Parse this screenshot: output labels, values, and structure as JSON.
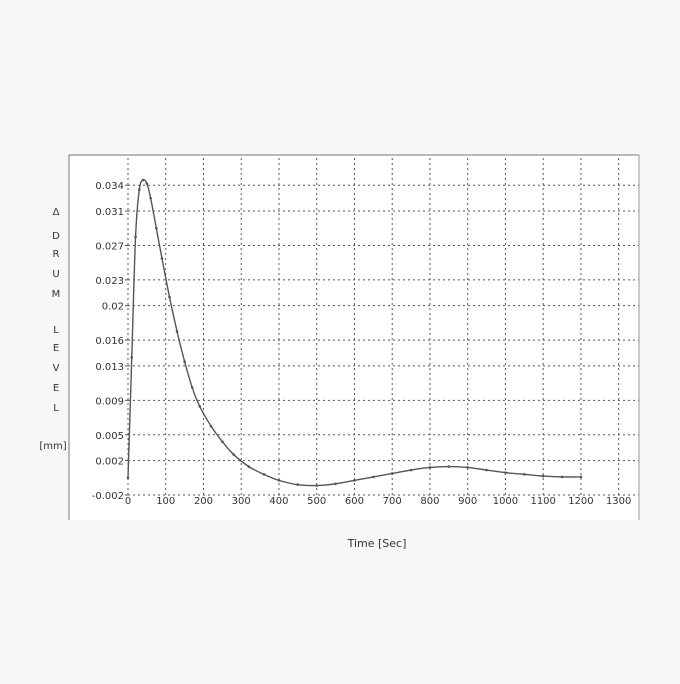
{
  "chart_data": {
    "type": "line",
    "title": "",
    "xlabel": "Time [Sec]",
    "ylabel_letters": [
      "Δ",
      "D",
      "R",
      "U",
      "M",
      "",
      "L",
      "E",
      "V",
      "E",
      "L",
      "",
      "[mm]"
    ],
    "xlim": [
      0,
      1330
    ],
    "ylim": [
      -0.002,
      0.036
    ],
    "x_ticks": [
      0,
      100,
      200,
      300,
      400,
      500,
      600,
      700,
      800,
      900,
      1000,
      1100,
      1200,
      1300
    ],
    "x_tick_labels": [
      "0",
      "100",
      "200",
      "300",
      "400",
      "500",
      "600",
      "700",
      "800",
      "900",
      "1000",
      "1100",
      "1200",
      "1300"
    ],
    "y_ticks": [
      -0.002,
      0.002,
      0.005,
      0.009,
      0.013,
      0.016,
      0.02,
      0.023,
      0.027,
      0.031,
      0.034
    ],
    "y_tick_labels": [
      "-0.002",
      "0.002",
      "0.005",
      "0.009",
      "0.013",
      "0.016",
      "0.02",
      "0.023",
      "0.027",
      "0.031",
      "0.034"
    ],
    "grid": true,
    "series": [
      {
        "color": "#555555",
        "x": [
          0,
          10,
          20,
          30,
          40,
          50,
          60,
          75,
          90,
          110,
          130,
          150,
          170,
          190,
          220,
          250,
          280,
          320,
          360,
          400,
          450,
          500,
          550,
          600,
          650,
          700,
          750,
          800,
          850,
          900,
          950,
          1000,
          1050,
          1100,
          1150,
          1200
        ],
        "y": [
          0.0,
          0.014,
          0.028,
          0.0335,
          0.0346,
          0.0342,
          0.0325,
          0.029,
          0.0255,
          0.021,
          0.017,
          0.0135,
          0.0105,
          0.0083,
          0.006,
          0.0042,
          0.0027,
          0.0013,
          0.0004,
          -0.0003,
          -0.0008,
          -0.0009,
          -0.0007,
          -0.0003,
          0.0001,
          0.0005,
          0.0009,
          0.0012,
          0.0013,
          0.0012,
          0.0009,
          0.0006,
          0.0004,
          0.0002,
          0.0001,
          0.0001
        ]
      }
    ]
  }
}
